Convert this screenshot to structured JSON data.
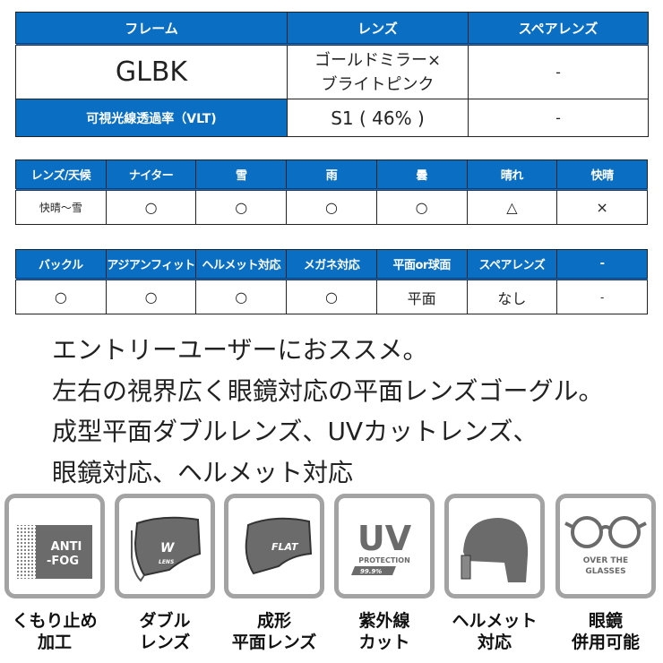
{
  "spec_table": {
    "headers": [
      "フレーム",
      "レンズ",
      "スペアレンズ"
    ],
    "frame": "GLBK",
    "lens_line1": "ゴールドミラー×",
    "lens_line2": "ブライトピンク",
    "spare": "-",
    "vlt_label": "可視光線透過率（VLT)",
    "vlt_value": "S1 ( 46% )",
    "vlt_spare": "-"
  },
  "weather_table": {
    "headers": [
      "レンズ/天候",
      "ナイター",
      "雪",
      "雨",
      "曇",
      "晴れ",
      "快晴"
    ],
    "row": [
      "快晴～雪",
      "○",
      "○",
      "○",
      "○",
      "△",
      "×"
    ]
  },
  "feature_table": {
    "headers": [
      "バックル",
      "アジアンフィット",
      "ヘルメット対応",
      "メガネ対応",
      "平面or球面",
      "スペアレンズ",
      "-"
    ],
    "row": [
      "○",
      "○",
      "○",
      "○",
      "平面",
      "なし",
      "-"
    ]
  },
  "description": [
    "エントリーユーザーにおススメ。",
    "左右の視界広く眼鏡対応の平面レンズゴーグル。",
    "成型平面ダブルレンズ、UVカットレンズ、",
    "眼鏡対応、ヘルメット対応"
  ],
  "icons": [
    {
      "name": "anti-fog",
      "text": [
        "ANTI",
        "-FOG"
      ],
      "label": [
        "くもり止め",
        "加工"
      ]
    },
    {
      "name": "double-lens",
      "text": [
        "W",
        "LENS"
      ],
      "label": [
        "ダブル",
        "レンズ"
      ]
    },
    {
      "name": "flat-lens",
      "text": [
        "FLAT"
      ],
      "label": [
        "成形",
        "平面レンズ"
      ]
    },
    {
      "name": "uv",
      "text": [
        "UV",
        "PROTECTION",
        "99.9%"
      ],
      "label": [
        "紫外線",
        "カット"
      ]
    },
    {
      "name": "helmet",
      "label": [
        "ヘルメット",
        "対応"
      ]
    },
    {
      "name": "glasses",
      "text": [
        "OVER THE",
        "GLASSES"
      ],
      "label": [
        "眼鏡",
        "併用可能"
      ]
    }
  ],
  "colors": {
    "header_blue": "#0a6fc2",
    "icon_gray": "#6b6b6b"
  }
}
